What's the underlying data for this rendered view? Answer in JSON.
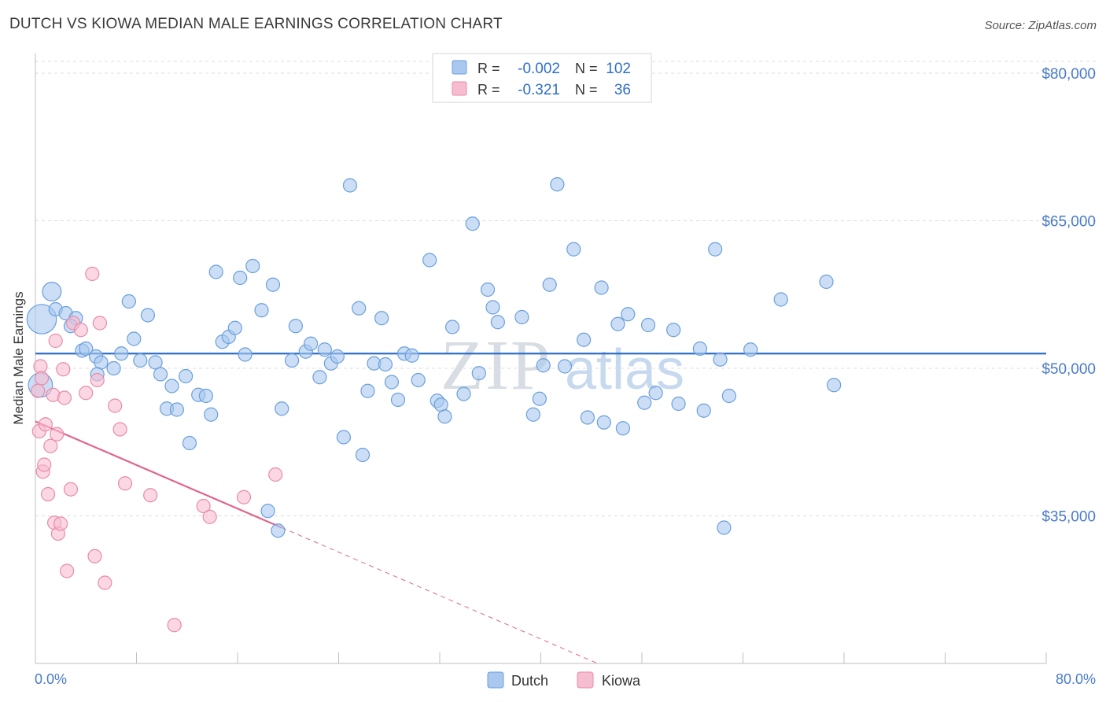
{
  "header": {
    "title": "DUTCH VS KIOWA MEDIAN MALE EARNINGS CORRELATION CHART",
    "source": "Source: ZipAtlas.com"
  },
  "colors": {
    "dutch_fill": "#a9c8ef",
    "dutch_stroke": "#6a9fdc",
    "dutch_line": "#2e6fc8",
    "kiowa_fill": "#f6bdd0",
    "kiowa_stroke": "#e98aaa",
    "kiowa_line": "#e0648e",
    "tick_label": "#4a7cc9",
    "grid": "#dcdcdc"
  },
  "chart_data": {
    "type": "scatter",
    "title": "DUTCH VS KIOWA MEDIAN MALE EARNINGS CORRELATION CHART",
    "xlabel": "",
    "ylabel": "Median Male Earnings",
    "xlim": [
      0,
      80
    ],
    "ylim": [
      20000,
      82000
    ],
    "x_tick_labels": [
      "0.0%",
      "80.0%"
    ],
    "y_ticks": [
      35000,
      50000,
      65000,
      80000
    ],
    "y_tick_labels": [
      "$35,000",
      "$50,000",
      "$65,000",
      "$80,000"
    ],
    "watermark": {
      "zip": "ZIP",
      "atlas": "atlas"
    },
    "legend": [
      {
        "name": "Dutch",
        "r_label": "R =",
        "r_value": "-0.002",
        "n_label": "N =",
        "n_value": "102"
      },
      {
        "name": "Kiowa",
        "r_label": "R =",
        "r_value": "-0.321",
        "n_label": "N =",
        "n_value": "36"
      }
    ],
    "series": [
      {
        "name": "Dutch",
        "trend": {
          "x": [
            0,
            80
          ],
          "y": [
            51500,
            51500
          ]
        },
        "points": [
          [
            0.5,
            55000,
            2.2
          ],
          [
            1.3,
            57800,
            1.4
          ],
          [
            0.4,
            48300,
            1.8
          ],
          [
            1.6,
            56000,
            1.0
          ],
          [
            2.4,
            55600,
            1.0
          ],
          [
            3.2,
            55100,
            1.0
          ],
          [
            2.8,
            54300,
            1.0
          ],
          [
            3.7,
            51800,
            1.0
          ],
          [
            4.0,
            52000,
            1.0
          ],
          [
            4.8,
            51200,
            1.0
          ],
          [
            5.2,
            50600,
            1.0
          ],
          [
            4.9,
            49400,
            1.0
          ],
          [
            6.2,
            50000,
            1.0
          ],
          [
            6.8,
            51500,
            1.0
          ],
          [
            7.4,
            56800,
            1.0
          ],
          [
            7.8,
            53000,
            1.0
          ],
          [
            8.3,
            50800,
            1.0
          ],
          [
            8.9,
            55400,
            1.0
          ],
          [
            9.5,
            50600,
            1.0
          ],
          [
            9.9,
            49400,
            1.0
          ],
          [
            10.4,
            45900,
            1.0
          ],
          [
            10.8,
            48200,
            1.0
          ],
          [
            11.2,
            45800,
            1.0
          ],
          [
            11.9,
            49200,
            1.0
          ],
          [
            12.2,
            42400,
            1.0
          ],
          [
            12.9,
            47300,
            1.0
          ],
          [
            13.5,
            47200,
            1.0
          ],
          [
            13.9,
            45300,
            1.0
          ],
          [
            14.3,
            59800,
            1.0
          ],
          [
            14.8,
            52700,
            1.0
          ],
          [
            15.3,
            53200,
            1.0
          ],
          [
            15.8,
            54100,
            1.0
          ],
          [
            16.2,
            59200,
            1.0
          ],
          [
            16.6,
            51400,
            1.0
          ],
          [
            17.2,
            60400,
            1.0
          ],
          [
            17.9,
            55900,
            1.0
          ],
          [
            18.4,
            35500,
            1.0
          ],
          [
            18.8,
            58500,
            1.0
          ],
          [
            19.2,
            33500,
            1.0
          ],
          [
            19.5,
            45900,
            1.0
          ],
          [
            20.3,
            50800,
            1.0
          ],
          [
            20.6,
            54300,
            1.0
          ],
          [
            21.4,
            51700,
            1.0
          ],
          [
            21.8,
            52500,
            1.0
          ],
          [
            22.5,
            49100,
            1.0
          ],
          [
            22.9,
            51900,
            1.0
          ],
          [
            23.4,
            50500,
            1.0
          ],
          [
            23.9,
            51200,
            1.0
          ],
          [
            24.4,
            43000,
            1.0
          ],
          [
            24.9,
            68600,
            1.0
          ],
          [
            25.6,
            56100,
            1.0
          ],
          [
            25.9,
            41200,
            1.0
          ],
          [
            26.3,
            47700,
            1.0
          ],
          [
            26.8,
            50500,
            1.0
          ],
          [
            27.4,
            55100,
            1.0
          ],
          [
            27.7,
            50400,
            1.0
          ],
          [
            28.2,
            48600,
            1.0
          ],
          [
            28.7,
            46800,
            1.0
          ],
          [
            29.2,
            51500,
            1.0
          ],
          [
            29.8,
            51300,
            1.0
          ],
          [
            30.3,
            48800,
            1.0
          ],
          [
            31.2,
            61000,
            1.0
          ],
          [
            31.8,
            46700,
            1.0
          ],
          [
            32.1,
            46300,
            1.0
          ],
          [
            32.4,
            45100,
            1.0
          ],
          [
            33.0,
            54200,
            1.0
          ],
          [
            33.9,
            47400,
            1.0
          ],
          [
            34.6,
            64700,
            1.0
          ],
          [
            35.1,
            49500,
            1.0
          ],
          [
            35.8,
            58000,
            1.0
          ],
          [
            36.2,
            56200,
            1.0
          ],
          [
            36.6,
            54700,
            1.0
          ],
          [
            38.5,
            55200,
            1.0
          ],
          [
            39.4,
            45300,
            1.0
          ],
          [
            39.9,
            46900,
            1.0
          ],
          [
            40.2,
            50300,
            1.0
          ],
          [
            40.7,
            58500,
            1.0
          ],
          [
            41.3,
            68700,
            1.0
          ],
          [
            41.9,
            50200,
            1.0
          ],
          [
            42.6,
            62100,
            1.0
          ],
          [
            43.4,
            52900,
            1.0
          ],
          [
            43.7,
            45000,
            1.0
          ],
          [
            44.8,
            58200,
            1.0
          ],
          [
            45.0,
            44500,
            1.0
          ],
          [
            46.1,
            54500,
            1.0
          ],
          [
            46.5,
            43900,
            1.0
          ],
          [
            46.9,
            55500,
            1.0
          ],
          [
            48.2,
            46500,
            1.0
          ],
          [
            48.5,
            54400,
            1.0
          ],
          [
            49.1,
            47500,
            1.0
          ],
          [
            50.5,
            53900,
            1.0
          ],
          [
            50.9,
            46400,
            1.0
          ],
          [
            52.6,
            52000,
            1.0
          ],
          [
            52.9,
            45700,
            1.0
          ],
          [
            53.8,
            62100,
            1.0
          ],
          [
            54.2,
            50900,
            1.0
          ],
          [
            54.5,
            33800,
            1.0
          ],
          [
            54.9,
            47200,
            1.0
          ],
          [
            56.6,
            51900,
            1.0
          ],
          [
            59.0,
            57000,
            1.0
          ],
          [
            62.6,
            58800,
            1.0
          ],
          [
            63.2,
            48300,
            1.0
          ]
        ]
      },
      {
        "name": "Kiowa",
        "trend": {
          "x": [
            0,
            19.5
          ],
          "y": [
            44600,
            33800
          ]
        },
        "trend_dashed": {
          "x": [
            19.5,
            44.5
          ],
          "y": [
            33800,
            20000
          ]
        },
        "points": [
          [
            0.2,
            47700,
            1.0
          ],
          [
            0.3,
            43600,
            1.0
          ],
          [
            0.4,
            50200,
            1.0
          ],
          [
            0.5,
            49000,
            1.0
          ],
          [
            0.6,
            39500,
            1.0
          ],
          [
            0.7,
            40200,
            1.0
          ],
          [
            0.8,
            44300,
            1.0
          ],
          [
            1.0,
            37200,
            1.0
          ],
          [
            1.2,
            42100,
            1.0
          ],
          [
            1.4,
            47300,
            1.0
          ],
          [
            1.5,
            34300,
            1.0
          ],
          [
            1.6,
            52800,
            1.0
          ],
          [
            1.7,
            43300,
            1.0
          ],
          [
            1.8,
            33200,
            1.0
          ],
          [
            2.0,
            34200,
            1.0
          ],
          [
            2.2,
            49900,
            1.0
          ],
          [
            2.3,
            47000,
            1.0
          ],
          [
            2.5,
            29400,
            1.0
          ],
          [
            2.8,
            37700,
            1.0
          ],
          [
            3.0,
            54600,
            1.0
          ],
          [
            3.6,
            53900,
            1.0
          ],
          [
            4.0,
            47500,
            1.0
          ],
          [
            4.5,
            59600,
            1.0
          ],
          [
            4.7,
            30900,
            1.0
          ],
          [
            4.9,
            48800,
            1.0
          ],
          [
            5.1,
            54600,
            1.0
          ],
          [
            5.5,
            28200,
            1.0
          ],
          [
            6.3,
            46200,
            1.0
          ],
          [
            6.7,
            43800,
            1.0
          ],
          [
            7.1,
            38300,
            1.0
          ],
          [
            9.1,
            37100,
            1.0
          ],
          [
            11.0,
            23900,
            1.0
          ],
          [
            13.3,
            36000,
            1.0
          ],
          [
            13.8,
            34900,
            1.0
          ],
          [
            16.5,
            36900,
            1.0
          ],
          [
            19.0,
            39200,
            1.0
          ]
        ]
      }
    ]
  }
}
